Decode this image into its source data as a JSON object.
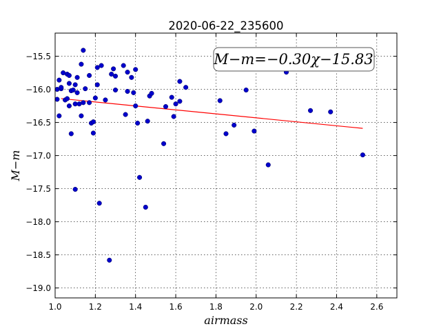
{
  "chart_data": {
    "type": "scatter",
    "title": "2020-06-22_235600",
    "xlabel": "airmass",
    "ylabel": "M−m",
    "xlim": [
      1.0,
      2.7
    ],
    "ylim": [
      -19.15,
      -15.15
    ],
    "y_inverted": true,
    "grid": true,
    "xticks": [
      1.0,
      1.2,
      1.4,
      1.6,
      1.8,
      2.0,
      2.2,
      2.4,
      2.6
    ],
    "xtick_labels": [
      "1.0",
      "1.2",
      "1.4",
      "1.6",
      "1.8",
      "2.0",
      "2.2",
      "2.4",
      "2.6"
    ],
    "yticks": [
      -15.5,
      -16.0,
      -16.5,
      -17.0,
      -17.5,
      -18.0,
      -18.5,
      -19.0
    ],
    "ytick_labels": [
      "−15.5",
      "−16.0",
      "−16.5",
      "−17.0",
      "−17.5",
      "−18.0",
      "−18.5",
      "−19.0"
    ],
    "annotation": "M−m=−0.30χ−15.83",
    "annotation_position": "top-right",
    "point_color": "#0000cc",
    "fit_color": "#ff0000",
    "fit_line": {
      "slope": -0.3,
      "intercept": -15.83,
      "x_range": [
        1.03,
        2.53
      ]
    },
    "points": [
      {
        "x": 1.01,
        "y": -16.15
      },
      {
        "x": 1.01,
        "y": -16.0
      },
      {
        "x": 1.02,
        "y": -16.4
      },
      {
        "x": 1.02,
        "y": -15.86
      },
      {
        "x": 1.03,
        "y": -15.99
      },
      {
        "x": 1.03,
        "y": -15.97
      },
      {
        "x": 1.04,
        "y": -15.75
      },
      {
        "x": 1.05,
        "y": -16.16
      },
      {
        "x": 1.06,
        "y": -16.14
      },
      {
        "x": 1.06,
        "y": -15.77
      },
      {
        "x": 1.07,
        "y": -15.79
      },
      {
        "x": 1.07,
        "y": -15.91
      },
      {
        "x": 1.07,
        "y": -16.25
      },
      {
        "x": 1.08,
        "y": -16.67
      },
      {
        "x": 1.08,
        "y": -16.02
      },
      {
        "x": 1.09,
        "y": -16.01
      },
      {
        "x": 1.1,
        "y": -15.93
      },
      {
        "x": 1.1,
        "y": -17.51
      },
      {
        "x": 1.1,
        "y": -16.22
      },
      {
        "x": 1.11,
        "y": -16.05
      },
      {
        "x": 1.11,
        "y": -15.82
      },
      {
        "x": 1.12,
        "y": -16.22
      },
      {
        "x": 1.13,
        "y": -16.4
      },
      {
        "x": 1.13,
        "y": -15.62
      },
      {
        "x": 1.14,
        "y": -15.41
      },
      {
        "x": 1.14,
        "y": -16.2
      },
      {
        "x": 1.15,
        "y": -15.99
      },
      {
        "x": 1.17,
        "y": -15.79
      },
      {
        "x": 1.17,
        "y": -16.2
      },
      {
        "x": 1.18,
        "y": -16.51
      },
      {
        "x": 1.19,
        "y": -16.49
      },
      {
        "x": 1.19,
        "y": -16.66
      },
      {
        "x": 1.2,
        "y": -16.13
      },
      {
        "x": 1.21,
        "y": -15.93
      },
      {
        "x": 1.21,
        "y": -15.67
      },
      {
        "x": 1.22,
        "y": -17.72
      },
      {
        "x": 1.23,
        "y": -15.64
      },
      {
        "x": 1.25,
        "y": -16.16
      },
      {
        "x": 1.27,
        "y": -18.58
      },
      {
        "x": 1.28,
        "y": -15.77
      },
      {
        "x": 1.29,
        "y": -15.69
      },
      {
        "x": 1.3,
        "y": -15.8
      },
      {
        "x": 1.3,
        "y": -16.01
      },
      {
        "x": 1.34,
        "y": -15.64
      },
      {
        "x": 1.35,
        "y": -16.38
      },
      {
        "x": 1.36,
        "y": -16.03
      },
      {
        "x": 1.36,
        "y": -15.74
      },
      {
        "x": 1.38,
        "y": -15.82
      },
      {
        "x": 1.39,
        "y": -16.05
      },
      {
        "x": 1.4,
        "y": -15.7
      },
      {
        "x": 1.4,
        "y": -16.25
      },
      {
        "x": 1.41,
        "y": -16.51
      },
      {
        "x": 1.42,
        "y": -17.33
      },
      {
        "x": 1.45,
        "y": -17.78
      },
      {
        "x": 1.46,
        "y": -16.48
      },
      {
        "x": 1.47,
        "y": -16.1
      },
      {
        "x": 1.48,
        "y": -16.06
      },
      {
        "x": 1.54,
        "y": -16.82
      },
      {
        "x": 1.55,
        "y": -16.26
      },
      {
        "x": 1.58,
        "y": -16.12
      },
      {
        "x": 1.59,
        "y": -16.41
      },
      {
        "x": 1.6,
        "y": -16.22
      },
      {
        "x": 1.62,
        "y": -16.18
      },
      {
        "x": 1.62,
        "y": -15.88
      },
      {
        "x": 1.65,
        "y": -15.97
      },
      {
        "x": 1.82,
        "y": -16.17
      },
      {
        "x": 1.85,
        "y": -16.67
      },
      {
        "x": 1.89,
        "y": -16.54
      },
      {
        "x": 1.95,
        "y": -16.01
      },
      {
        "x": 1.99,
        "y": -16.63
      },
      {
        "x": 2.06,
        "y": -17.14
      },
      {
        "x": 2.15,
        "y": -15.74
      },
      {
        "x": 2.27,
        "y": -16.32
      },
      {
        "x": 2.37,
        "y": -16.34
      },
      {
        "x": 2.53,
        "y": -16.99
      }
    ]
  }
}
